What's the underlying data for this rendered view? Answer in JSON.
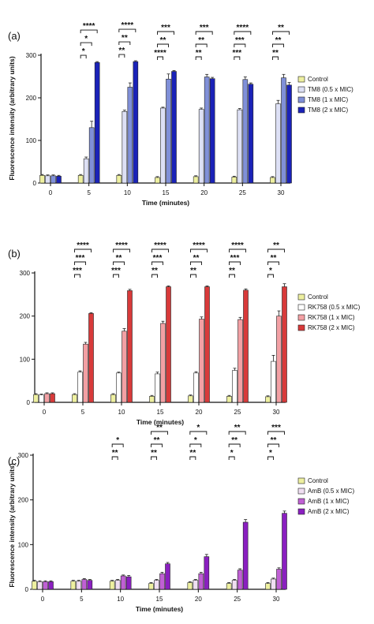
{
  "chart_data": [
    {
      "type": "bar",
      "panel_label": "(a)",
      "xlabel": "Time (minutes)",
      "ylabel": "Fluorescence intensity (arbitrary units)",
      "ylim": [
        0,
        300
      ],
      "yticks": [
        0,
        100,
        200,
        300
      ],
      "categories": [
        "0",
        "5",
        "10",
        "15",
        "20",
        "25",
        "30"
      ],
      "legend_position": "right",
      "series": [
        {
          "name": "Control",
          "color": "#eef0a0",
          "values": [
            18,
            18,
            18,
            13,
            15,
            14,
            13
          ],
          "errors": [
            2,
            2,
            2,
            2,
            2,
            2,
            2
          ]
        },
        {
          "name": "TM8 (0.5 x MIC)",
          "color": "#dde0f5",
          "values": [
            17,
            57,
            168,
            176,
            173,
            172,
            186
          ],
          "errors": [
            2,
            4,
            3,
            2,
            3,
            3,
            8
          ]
        },
        {
          "name": "TM8 (1 x MIC)",
          "color": "#8090d8",
          "values": [
            17,
            130,
            225,
            244,
            249,
            243,
            247
          ],
          "errors": [
            2,
            15,
            10,
            12,
            6,
            6,
            8
          ]
        },
        {
          "name": "TM8 (2 x MIC)",
          "color": "#1a22b8",
          "values": [
            16,
            283,
            285,
            262,
            245,
            232,
            230
          ],
          "errors": [
            2,
            2,
            2,
            2,
            3,
            3,
            6
          ]
        }
      ],
      "significance": [
        [
          "*",
          "*",
          "****"
        ],
        [
          "**",
          "**",
          "****"
        ],
        [
          "****",
          "**",
          "***"
        ],
        [
          "**",
          "**",
          "***"
        ],
        [
          "***",
          "***",
          "****"
        ],
        [
          "**",
          "**",
          "**"
        ]
      ]
    },
    {
      "type": "bar",
      "panel_label": "(b)",
      "xlabel": "Time (minutes)",
      "ylabel": "",
      "ylim": [
        0,
        300
      ],
      "yticks": [
        0,
        100,
        200,
        300
      ],
      "categories": [
        "0",
        "5",
        "10",
        "15",
        "20",
        "25",
        "30"
      ],
      "legend_position": "right",
      "series": [
        {
          "name": "Control",
          "color": "#eef0a0",
          "values": [
            18,
            18,
            18,
            14,
            15,
            14,
            13
          ],
          "errors": [
            2,
            2,
            2,
            2,
            2,
            2,
            2
          ]
        },
        {
          "name": "RK758 (0.5 x MIC)",
          "color": "#ffffff",
          "values": [
            17,
            70,
            68,
            66,
            68,
            74,
            95
          ],
          "errors": [
            2,
            3,
            2,
            4,
            3,
            5,
            14
          ]
        },
        {
          "name": "RK758 (1 x MIC)",
          "color": "#f3a0a4",
          "values": [
            20,
            135,
            165,
            183,
            193,
            192,
            200
          ],
          "errors": [
            2,
            4,
            6,
            5,
            5,
            5,
            12
          ]
        },
        {
          "name": "RK758 (2 x MIC)",
          "color": "#d83a3a",
          "values": [
            20,
            206,
            259,
            268,
            268,
            260,
            268
          ],
          "errors": [
            2,
            2,
            3,
            2,
            2,
            3,
            7
          ]
        }
      ],
      "significance": [
        [
          "***",
          "***",
          "****"
        ],
        [
          "***",
          "**",
          "****"
        ],
        [
          "**",
          "***",
          "****"
        ],
        [
          "**",
          "**",
          "****"
        ],
        [
          "**",
          "***",
          "****"
        ],
        [
          "*",
          "**",
          "**"
        ]
      ]
    },
    {
      "type": "bar",
      "panel_label": "(c)",
      "xlabel": "Time (minutes)",
      "ylabel": "Fluorescence intensity (arbitrary units)",
      "ylim": [
        0,
        300
      ],
      "yticks": [
        0,
        100,
        200,
        300
      ],
      "categories": [
        "0",
        "5",
        "10",
        "15",
        "20",
        "25",
        "30"
      ],
      "legend_position": "right",
      "series": [
        {
          "name": "Control",
          "color": "#eef0a0",
          "values": [
            18,
            18,
            18,
            13,
            15,
            13,
            13
          ],
          "errors": [
            2,
            2,
            2,
            2,
            2,
            2,
            2
          ]
        },
        {
          "name": "AmB (0.5 x MIC)",
          "color": "#f0dff2",
          "values": [
            17,
            18,
            20,
            20,
            20,
            20,
            23
          ],
          "errors": [
            2,
            2,
            2,
            2,
            2,
            2,
            2
          ]
        },
        {
          "name": "AmB (1 x MIC)",
          "color": "#c060d4",
          "values": [
            17,
            22,
            30,
            35,
            35,
            43,
            45
          ],
          "errors": [
            2,
            2,
            2,
            3,
            3,
            3,
            3
          ]
        },
        {
          "name": "AmB (2 x MIC)",
          "color": "#8a1fc0",
          "values": [
            17,
            20,
            28,
            57,
            73,
            150,
            170
          ],
          "errors": [
            2,
            2,
            3,
            3,
            5,
            6,
            5
          ]
        }
      ],
      "significance": [
        [
          "",
          "",
          ""
        ],
        [
          "**",
          "*",
          ""
        ],
        [
          "**",
          "**",
          "**"
        ],
        [
          "**",
          "*",
          "*"
        ],
        [
          "*",
          "**",
          "**"
        ],
        [
          "*",
          "**",
          "***"
        ]
      ]
    }
  ]
}
